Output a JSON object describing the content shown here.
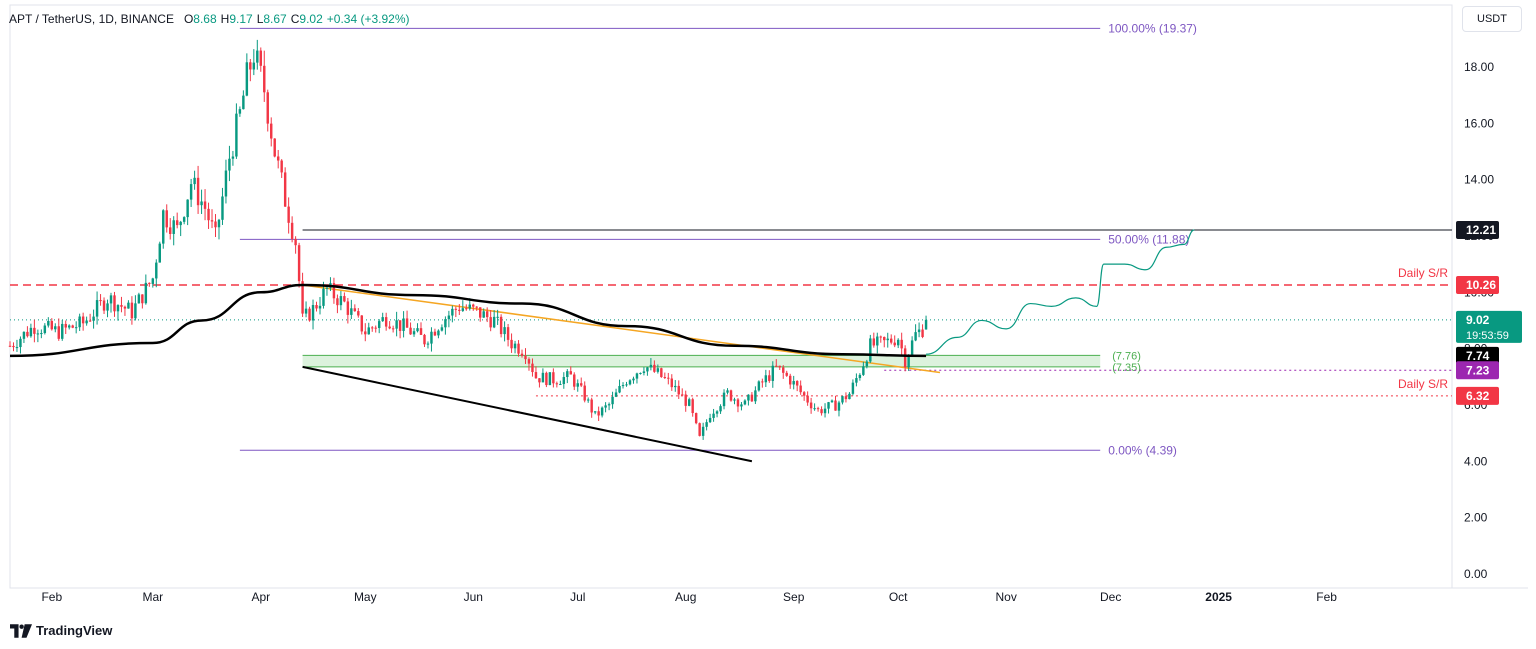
{
  "header": {
    "symbol": "APT / TetherUS, 1D, BINANCE",
    "open_label": "O",
    "open": "8.68",
    "high_label": "H",
    "high": "9.17",
    "low_label": "L",
    "low": "8.67",
    "close_label": "C",
    "close": "9.02",
    "change": "+0.34 (+3.92%)"
  },
  "currency_button": "USDT",
  "footer": {
    "brand": "TradingView"
  },
  "colors": {
    "up": "#089981",
    "down": "#f23645",
    "fib": "#7e57c2",
    "sr": "#f23645",
    "zone_fill": "#cdeccf",
    "zone_line": "#4caf50",
    "orange_trend": "#f5a623",
    "ma": "#000000",
    "projection": "#089981",
    "support_purple": "#9c27b0"
  },
  "chart_data": {
    "type": "candlestick",
    "title": "",
    "xlabel": "",
    "ylabel": "",
    "ylim": [
      -0.5,
      20.2
    ],
    "y_ticks": [
      "0.00",
      "2.00",
      "4.00",
      "6.00",
      "8.00",
      "10.00",
      "12.00",
      "14.00",
      "16.00",
      "18.00"
    ],
    "y_tick_values": [
      0,
      2,
      4,
      6,
      8,
      10,
      12,
      14,
      16,
      18
    ],
    "x_ticks": [
      {
        "label": "Feb",
        "date": "2024-02-01"
      },
      {
        "label": "Mar",
        "date": "2024-03-01"
      },
      {
        "label": "Apr",
        "date": "2024-04-01"
      },
      {
        "label": "May",
        "date": "2024-05-01"
      },
      {
        "label": "Jun",
        "date": "2024-06-01"
      },
      {
        "label": "Jul",
        "date": "2024-07-01"
      },
      {
        "label": "Aug",
        "date": "2024-08-01"
      },
      {
        "label": "Sep",
        "date": "2024-09-01"
      },
      {
        "label": "Oct",
        "date": "2024-10-01"
      },
      {
        "label": "Nov",
        "date": "2024-11-01"
      },
      {
        "label": "Dec",
        "date": "2024-12-01"
      },
      {
        "label": "2025",
        "date": "2025-01-01"
      },
      {
        "label": "Feb",
        "date": "2025-02-01"
      }
    ],
    "xlim": [
      "2024-01-20",
      "2025-03-09"
    ],
    "price_series": [
      [
        "2024-01-20",
        8.1
      ],
      [
        "2024-01-27",
        8.8
      ],
      [
        "2024-02-03",
        8.6
      ],
      [
        "2024-02-10",
        8.9
      ],
      [
        "2024-02-17",
        9.8
      ],
      [
        "2024-02-24",
        9.3
      ],
      [
        "2024-03-01",
        10.5
      ],
      [
        "2024-03-04",
        12.8
      ],
      [
        "2024-03-08",
        12.2
      ],
      [
        "2024-03-12",
        13.9
      ],
      [
        "2024-03-16",
        13.0
      ],
      [
        "2024-03-19",
        11.9
      ],
      [
        "2024-03-23",
        14.8
      ],
      [
        "2024-03-26",
        16.3
      ],
      [
        "2024-03-28",
        17.6
      ],
      [
        "2024-03-30",
        18.5
      ],
      [
        "2024-04-02",
        17.2
      ],
      [
        "2024-04-05",
        15.0
      ],
      [
        "2024-04-08",
        13.3
      ],
      [
        "2024-04-11",
        11.8
      ],
      [
        "2024-04-13",
        9.0
      ],
      [
        "2024-04-16",
        9.4
      ],
      [
        "2024-04-20",
        10.1
      ],
      [
        "2024-04-25",
        9.6
      ],
      [
        "2024-05-01",
        8.6
      ],
      [
        "2024-05-07",
        9.1
      ],
      [
        "2024-05-13",
        8.7
      ],
      [
        "2024-05-18",
        8.3
      ],
      [
        "2024-05-23",
        9.0
      ],
      [
        "2024-05-28",
        9.5
      ],
      [
        "2024-06-02",
        9.3
      ],
      [
        "2024-06-07",
        9.0
      ],
      [
        "2024-06-12",
        8.2
      ],
      [
        "2024-06-16",
        7.9
      ],
      [
        "2024-06-19",
        7.0
      ],
      [
        "2024-06-24",
        6.9
      ],
      [
        "2024-06-29",
        7.0
      ],
      [
        "2024-07-03",
        6.3
      ],
      [
        "2024-07-06",
        5.6
      ],
      [
        "2024-07-10",
        6.0
      ],
      [
        "2024-07-15",
        6.9
      ],
      [
        "2024-07-20",
        7.4
      ],
      [
        "2024-07-24",
        7.1
      ],
      [
        "2024-07-28",
        6.7
      ],
      [
        "2024-08-02",
        6.0
      ],
      [
        "2024-08-05",
        4.8
      ],
      [
        "2024-08-08",
        5.7
      ],
      [
        "2024-08-13",
        6.4
      ],
      [
        "2024-08-18",
        6.0
      ],
      [
        "2024-08-23",
        6.8
      ],
      [
        "2024-08-27",
        7.3
      ],
      [
        "2024-08-31",
        6.9
      ],
      [
        "2024-09-04",
        6.3
      ],
      [
        "2024-09-08",
        5.8
      ],
      [
        "2024-09-13",
        6.0
      ],
      [
        "2024-09-17",
        6.4
      ],
      [
        "2024-09-20",
        7.2
      ],
      [
        "2024-09-23",
        8.1
      ],
      [
        "2024-09-27",
        8.2
      ],
      [
        "2024-10-01",
        8.4
      ],
      [
        "2024-10-03",
        7.6
      ],
      [
        "2024-10-06",
        8.5
      ],
      [
        "2024-10-08",
        8.7
      ],
      [
        "2024-10-09",
        9.02
      ]
    ],
    "moving_average_200": [
      [
        "2024-01-20",
        7.74
      ],
      [
        "2024-03-01",
        8.2
      ],
      [
        "2024-03-15",
        9.0
      ],
      [
        "2024-04-01",
        10.0
      ],
      [
        "2024-04-13",
        10.26
      ],
      [
        "2024-05-15",
        9.9
      ],
      [
        "2024-06-15",
        9.6
      ],
      [
        "2024-07-15",
        8.8
      ],
      [
        "2024-08-15",
        8.1
      ],
      [
        "2024-09-15",
        7.8
      ],
      [
        "2024-10-09",
        7.74
      ]
    ],
    "fibonacci": [
      {
        "label": "100.00% (19.37)",
        "value": 19.37,
        "start": "2024-03-26",
        "end": "2024-11-28"
      },
      {
        "label": "50.00% (11.88)",
        "value": 11.88,
        "start": "2024-03-26",
        "end": "2024-11-28"
      },
      {
        "label": "0.00% (4.39)",
        "value": 4.39,
        "start": "2024-03-26",
        "end": "2024-11-28"
      }
    ],
    "horizontal_levels": [
      {
        "label": "Daily S/R",
        "value": 10.26,
        "style": "dashed",
        "badge": "10.26"
      },
      {
        "label": "Daily S/R",
        "value": 6.32,
        "style": "dotted",
        "badge": "6.32",
        "start": "2024-06-19"
      },
      {
        "label": "",
        "value": 12.21,
        "style": "solid",
        "badge": "12.21",
        "start": "2024-04-13"
      },
      {
        "label": "",
        "value": 7.23,
        "style": "dotted",
        "badge": "7.23",
        "start": "2024-09-27"
      }
    ],
    "zone": {
      "top": 7.76,
      "bottom": 7.35,
      "top_label": "(7.76)",
      "bottom_label": "(7.35)",
      "start": "2024-04-13",
      "end": "2024-11-28"
    },
    "trendlines": [
      {
        "name": "descending-support",
        "from": [
          "2024-04-13",
          7.35
        ],
        "to": [
          "2024-08-20",
          4.0
        ]
      },
      {
        "name": "descending-resistance",
        "from": [
          "2024-04-13",
          10.26
        ],
        "to": [
          "2024-10-13",
          7.15
        ]
      }
    ],
    "projection": [
      [
        "2024-10-09",
        7.8
      ],
      [
        "2024-10-18",
        8.4
      ],
      [
        "2024-10-25",
        9.0
      ],
      [
        "2024-11-01",
        8.7
      ],
      [
        "2024-11-08",
        9.6
      ],
      [
        "2024-11-14",
        9.5
      ],
      [
        "2024-11-21",
        9.8
      ],
      [
        "2024-11-27",
        9.5
      ],
      [
        "2024-11-29",
        11.0
      ],
      [
        "2024-12-05",
        11.0
      ],
      [
        "2024-12-11",
        10.8
      ],
      [
        "2024-12-17",
        11.6
      ],
      [
        "2024-12-22",
        11.7
      ],
      [
        "2024-12-25",
        12.21
      ]
    ],
    "last_price": {
      "value": "9.02",
      "countdown": "19:53:59"
    },
    "ma_badge": "7.74"
  }
}
